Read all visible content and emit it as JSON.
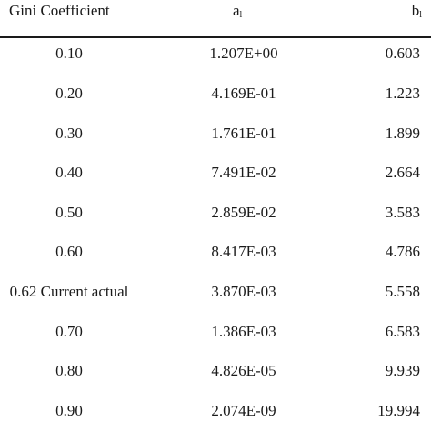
{
  "table": {
    "headers": {
      "col1": "Gini Coefficient",
      "col2_base": "a",
      "col2_sub": "l",
      "col3_base": "b",
      "col3_sub": "l"
    },
    "rows": [
      {
        "gini": "0.10",
        "a": "1.207E+00",
        "b": "0.603"
      },
      {
        "gini": "0.20",
        "a": "4.169E-01",
        "b": "1.223"
      },
      {
        "gini": "0.30",
        "a": "1.761E-01",
        "b": "1.899"
      },
      {
        "gini": "0.40",
        "a": "7.491E-02",
        "b": "2.664"
      },
      {
        "gini": "0.50",
        "a": "2.859E-02",
        "b": "3.583"
      },
      {
        "gini": "0.60",
        "a": "8.417E-03",
        "b": "4.786"
      },
      {
        "gini": "0.62 Current actual",
        "a": "3.870E-03",
        "b": "5.558"
      },
      {
        "gini": "0.70",
        "a": "1.386E-03",
        "b": "6.583"
      },
      {
        "gini": "0.80",
        "a": "4.826E-05",
        "b": "9.939"
      },
      {
        "gini": "0.90",
        "a": "2.074E-09",
        "b": "19.994"
      }
    ]
  }
}
